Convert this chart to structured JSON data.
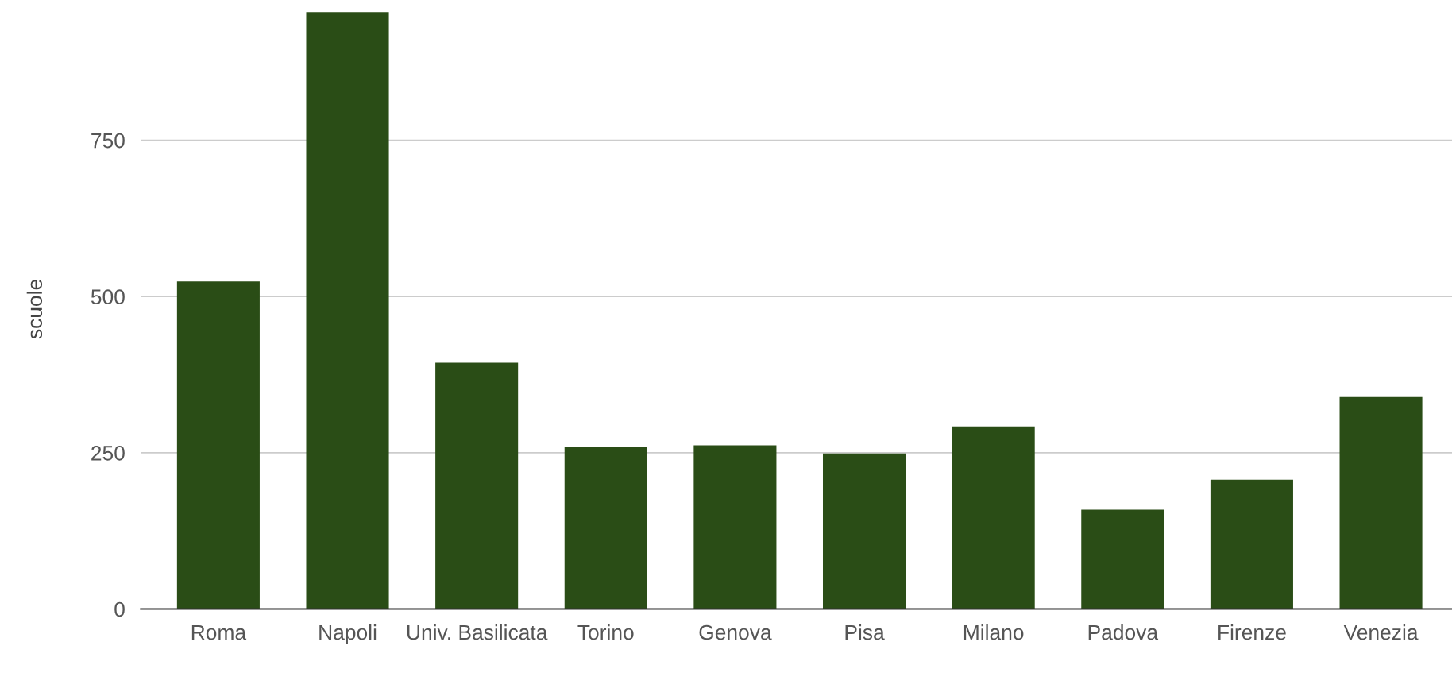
{
  "chart_data": {
    "type": "bar",
    "ylabel": "scuole",
    "categories": [
      "Roma",
      "Napoli",
      "Univ. Basilicata",
      "Torino",
      "Genova",
      "Pisa",
      "Milano",
      "Padova",
      "Firenze",
      "Venezia"
    ],
    "values": [
      524,
      955,
      394,
      259,
      262,
      249,
      292,
      159,
      207,
      339
    ],
    "color": "#2a4d16",
    "ylim": [
      0,
      960
    ],
    "yticks": [
      0,
      250,
      500,
      750
    ],
    "grid": "y"
  }
}
